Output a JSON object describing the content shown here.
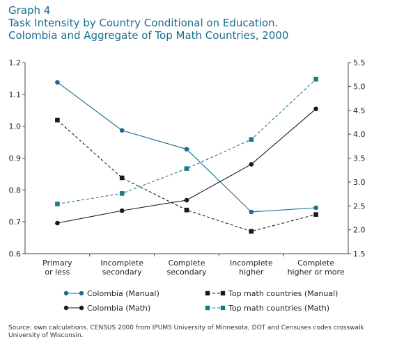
{
  "header": {
    "label": "Graph 4",
    "title_line1": "Task Intensity by Country Conditional on Education.",
    "title_line2": "Colombia and Aggregate of Top Math Countries, 2000"
  },
  "chart_data": {
    "type": "line",
    "categories": [
      [
        "Primary",
        "or less"
      ],
      [
        "Incomplete",
        "secondary"
      ],
      [
        "Complete",
        "secondary"
      ],
      [
        "Incomplete",
        "higher"
      ],
      [
        "Complete",
        "higher or more"
      ]
    ],
    "y_left": {
      "range": [
        0.6,
        1.2
      ],
      "ticks": [
        "0.6",
        "0.7",
        "0.8",
        "0.9",
        "1.0",
        "1.1",
        "1.2"
      ]
    },
    "y_right": {
      "range": [
        1.5,
        5.5
      ],
      "ticks": [
        "1.5",
        "2.0",
        "2.5",
        "3.0",
        "3.5",
        "4.0",
        "4.5",
        "5.0",
        "5.5"
      ]
    },
    "grid": false,
    "legend_position": "bottom",
    "series": [
      {
        "name": "Colombia (Manual)",
        "axis": "left",
        "marker": "circle",
        "dash": "solid",
        "color": "#1a6b8f",
        "values": [
          1.138,
          0.987,
          0.928,
          0.731,
          0.744
        ]
      },
      {
        "name": "Top math countries (Manual)",
        "axis": "left",
        "marker": "square",
        "dash": "dashed",
        "color": "#1a1a1a",
        "values": [
          1.019,
          0.838,
          0.737,
          0.67,
          0.723
        ]
      },
      {
        "name": "Colombia (Math)",
        "axis": "right",
        "marker": "circle",
        "dash": "solid",
        "color": "#1a1a1a",
        "values": [
          2.14,
          2.4,
          2.62,
          3.37,
          4.53
        ]
      },
      {
        "name": "Top math countries (Math)",
        "axis": "right",
        "marker": "square",
        "dash": "dashed",
        "color": "#1a7b85",
        "values": [
          2.54,
          2.76,
          3.28,
          3.89,
          5.15
        ]
      }
    ]
  },
  "footer": {
    "source": "Source: own calculations. CENSUS 2000 from IPUMS University of Minnesota, DOT and Censuses codes crosswalk University of Wisconsin."
  }
}
